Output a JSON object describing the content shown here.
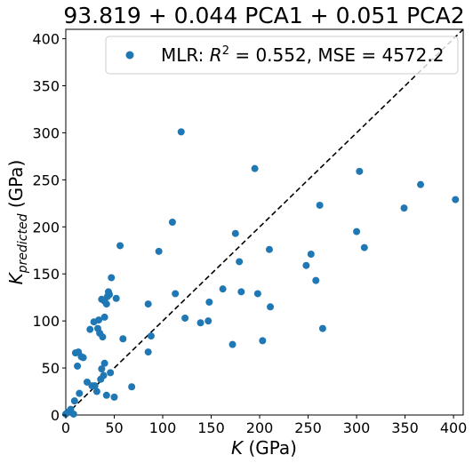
{
  "chart_data": {
    "type": "scatter",
    "title": "93.819 + 0.044 PCA1 + 0.051 PCA2",
    "xlabel": {
      "main": "K",
      "unit": " (GPa)"
    },
    "ylabel": {
      "main": "K",
      "sub": "predicted",
      "unit": " (GPa)"
    },
    "xlim": [
      0,
      410
    ],
    "ylim": [
      0,
      410
    ],
    "xticks": [
      0,
      50,
      100,
      150,
      200,
      250,
      300,
      350,
      400
    ],
    "yticks": [
      0,
      50,
      100,
      150,
      200,
      250,
      300,
      350,
      400
    ],
    "grid": false,
    "legend": {
      "placement": "top-right",
      "label_prefix": "MLR: ",
      "label_r": "R",
      "label_exp": "2",
      "label_suffix": " = 0.552, MSE = 4572.2"
    },
    "reference_line": {
      "style": "dashed",
      "color": "#000000",
      "x": [
        0,
        410
      ],
      "y": [
        0,
        410
      ]
    },
    "marker_color": "#1f77b4",
    "series": [
      {
        "name": "MLR",
        "points": [
          [
            0,
            1
          ],
          [
            2,
            3
          ],
          [
            5,
            6
          ],
          [
            8,
            1
          ],
          [
            9,
            15
          ],
          [
            10,
            66
          ],
          [
            12,
            52
          ],
          [
            13,
            67
          ],
          [
            14,
            23
          ],
          [
            16,
            62
          ],
          [
            18,
            61
          ],
          [
            22,
            35
          ],
          [
            25,
            91
          ],
          [
            27,
            31
          ],
          [
            29,
            99
          ],
          [
            30,
            31
          ],
          [
            32,
            25
          ],
          [
            33,
            92
          ],
          [
            34,
            101
          ],
          [
            35,
            87
          ],
          [
            36,
            38
          ],
          [
            37,
            49
          ],
          [
            37,
            123
          ],
          [
            38,
            83
          ],
          [
            39,
            42
          ],
          [
            40,
            104
          ],
          [
            40,
            55
          ],
          [
            40,
            121
          ],
          [
            42,
            118
          ],
          [
            42,
            21
          ],
          [
            43,
            126
          ],
          [
            44,
            131
          ],
          [
            45,
            128
          ],
          [
            46,
            45
          ],
          [
            47,
            146
          ],
          [
            50,
            19
          ],
          [
            52,
            124
          ],
          [
            56,
            180
          ],
          [
            59,
            81
          ],
          [
            68,
            30
          ],
          [
            85,
            118
          ],
          [
            85,
            67
          ],
          [
            88,
            84
          ],
          [
            96,
            174
          ],
          [
            110,
            205
          ],
          [
            113,
            129
          ],
          [
            119,
            301
          ],
          [
            123,
            103
          ],
          [
            139,
            98
          ],
          [
            147,
            100
          ],
          [
            148,
            120
          ],
          [
            162,
            134
          ],
          [
            172,
            75
          ],
          [
            175,
            193
          ],
          [
            179,
            163
          ],
          [
            181,
            131
          ],
          [
            195,
            262
          ],
          [
            198,
            129
          ],
          [
            203,
            79
          ],
          [
            210,
            176
          ],
          [
            211,
            115
          ],
          [
            248,
            159
          ],
          [
            253,
            171
          ],
          [
            258,
            143
          ],
          [
            262,
            223
          ],
          [
            265,
            92
          ],
          [
            300,
            195
          ],
          [
            303,
            259
          ],
          [
            308,
            178
          ],
          [
            349,
            220
          ],
          [
            366,
            245
          ],
          [
            402,
            229
          ]
        ]
      }
    ]
  }
}
